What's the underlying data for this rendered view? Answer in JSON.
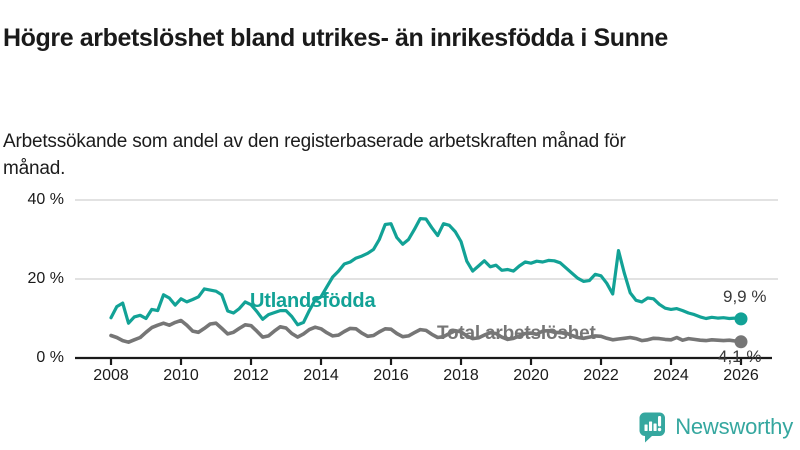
{
  "header": {
    "title": "Högre arbetslöshet bland utrikes- än inrikesfödda i Sunne",
    "subtitle": "Arbetssökande som andel av den registerbaserade arbetskraften månad för månad."
  },
  "brand": {
    "name": "Newsworthy",
    "icon": "bar-chart-speech-bubble-icon",
    "color": "#35a79f"
  },
  "colors": {
    "accent_teal": "#12a296",
    "line_gray": "#767676",
    "grid": "#d8d8d8",
    "axis": "#1a1a1a",
    "end_label_text": "#3a3a3a"
  },
  "chart_data": {
    "type": "line",
    "title": "Arbetssökande som andel av den registerbaserade arbetskraften månad för månad",
    "unit": "%",
    "grid": "horizontal",
    "legend_position": "inline-labels",
    "x_start": 2008.0,
    "x_step_months": 2,
    "xlim": [
      2008,
      2026.2
    ],
    "ylim": [
      0,
      44
    ],
    "xticks": [
      2008,
      2010,
      2012,
      2014,
      2016,
      2018,
      2020,
      2022,
      2024,
      2026
    ],
    "yticks": [
      {
        "value": 0,
        "label": "0 %"
      },
      {
        "value": 20,
        "label": "20 %"
      },
      {
        "value": 40,
        "label": "40 %"
      }
    ],
    "series": [
      {
        "name": "Utlandsfödda",
        "color": "#12a296",
        "end_label": "9,9 %",
        "end_value": 9.9,
        "values": [
          10.2,
          13.0,
          13.9,
          8.8,
          10.4,
          10.8,
          10.0,
          12.3,
          12.0,
          16.0,
          15.2,
          13.4,
          15.0,
          14.2,
          14.8,
          15.5,
          17.5,
          17.2,
          16.9,
          16.0,
          11.9,
          11.4,
          12.5,
          14.2,
          13.5,
          11.8,
          9.8,
          11.0,
          11.5,
          12.0,
          12.0,
          10.5,
          8.4,
          9.0,
          12.0,
          14.7,
          15.5,
          18.0,
          20.5,
          22.0,
          23.8,
          24.3,
          25.3,
          25.8,
          26.5,
          27.5,
          30.0,
          33.8,
          34.0,
          30.5,
          28.8,
          30.0,
          32.5,
          35.3,
          35.2,
          33.0,
          31.0,
          34.0,
          33.6,
          32.0,
          29.5,
          24.5,
          22.0,
          23.3,
          24.6,
          23.1,
          23.5,
          22.2,
          22.4,
          22.0,
          23.3,
          24.3,
          24.0,
          24.5,
          24.3,
          24.7,
          24.6,
          24.1,
          22.8,
          21.5,
          20.2,
          19.4,
          19.6,
          21.2,
          20.8,
          18.9,
          16.2,
          27.2,
          21.5,
          16.5,
          14.6,
          14.2,
          15.2,
          15.0,
          13.6,
          12.6,
          12.3,
          12.5,
          12.0,
          11.4,
          11.0,
          10.4,
          10.0,
          10.3,
          10.1,
          10.2,
          10.0,
          10.1,
          9.9
        ]
      },
      {
        "name": "Total arbetslöshet",
        "color": "#767676",
        "end_label": "4,1 %",
        "end_value": 4.1,
        "values": [
          5.7,
          5.2,
          4.4,
          4.0,
          4.6,
          5.2,
          6.5,
          7.7,
          8.3,
          8.8,
          8.3,
          9.0,
          9.5,
          8.3,
          6.8,
          6.5,
          7.5,
          8.6,
          8.8,
          7.5,
          6.1,
          6.5,
          7.5,
          8.4,
          8.2,
          6.8,
          5.3,
          5.6,
          6.8,
          7.9,
          7.6,
          6.2,
          5.3,
          6.1,
          7.2,
          7.8,
          7.4,
          6.4,
          5.6,
          5.8,
          6.7,
          7.5,
          7.4,
          6.3,
          5.5,
          5.7,
          6.6,
          7.4,
          7.3,
          6.2,
          5.4,
          5.6,
          6.4,
          7.2,
          7.0,
          6.0,
          5.2,
          5.4,
          6.2,
          6.9,
          6.6,
          5.6,
          4.9,
          5.1,
          5.8,
          6.4,
          6.2,
          5.3,
          4.7,
          5.0,
          5.6,
          6.2,
          6.3,
          6.0,
          6.8,
          6.9,
          6.5,
          6.4,
          6.3,
          5.7,
          5.2,
          5.0,
          5.3,
          5.6,
          5.5,
          5.0,
          4.6,
          4.8,
          5.0,
          5.2,
          4.9,
          4.4,
          4.6,
          5.0,
          4.9,
          4.7,
          4.6,
          5.2,
          4.5,
          4.9,
          4.7,
          4.5,
          4.4,
          4.6,
          4.5,
          4.4,
          4.5,
          4.3,
          4.1
        ]
      }
    ]
  }
}
